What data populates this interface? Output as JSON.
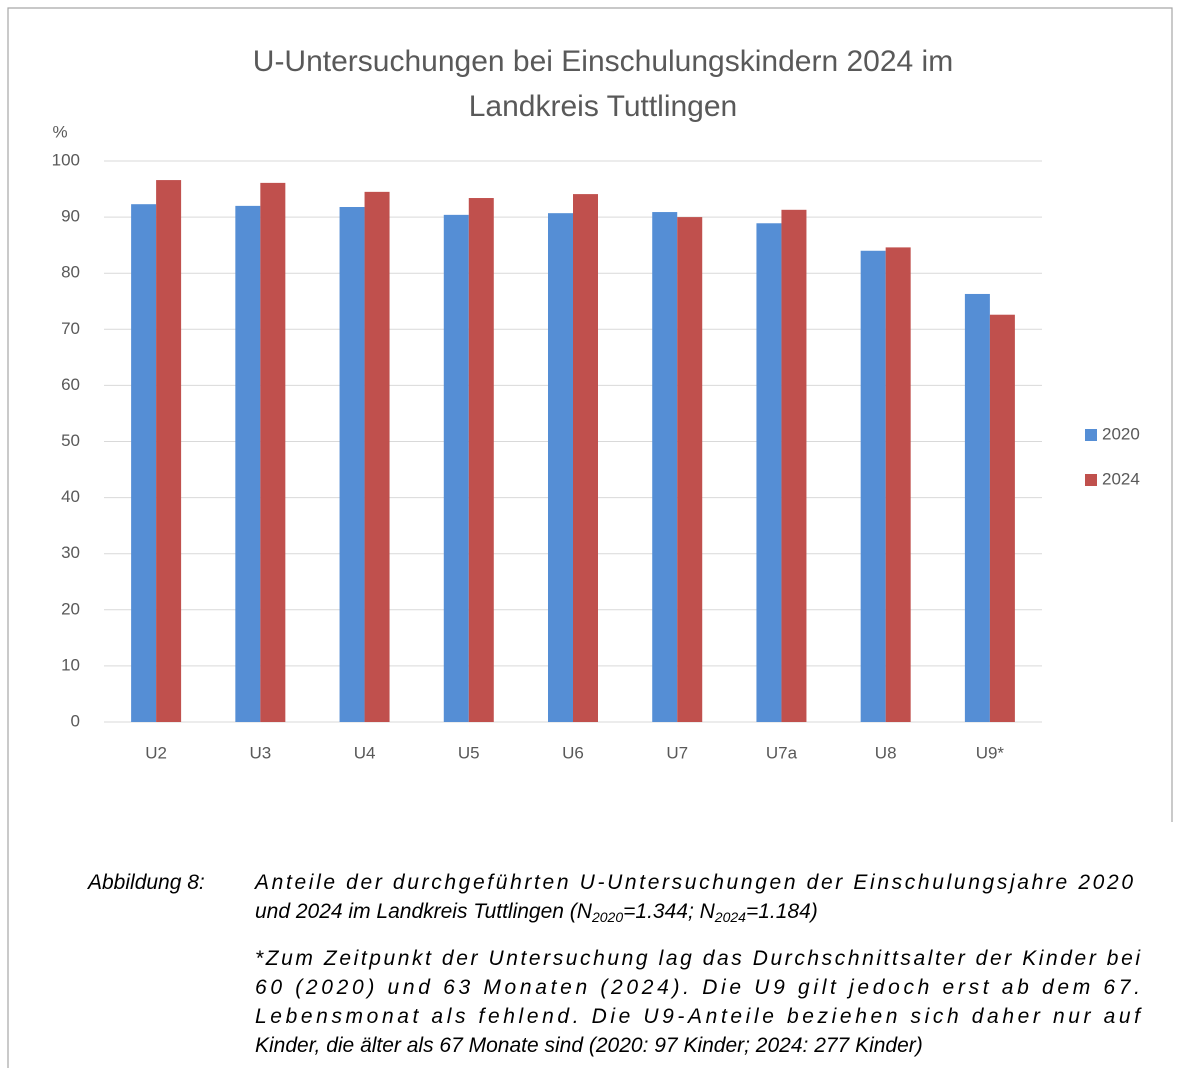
{
  "chart_data": {
    "type": "bar",
    "title": [
      "U-Untersuchungen bei Einschulungskindern 2024 im",
      "Landkreis Tuttlingen"
    ],
    "y_label": "%",
    "categories": [
      "U2",
      "U3",
      "U4",
      "U5",
      "U6",
      "U7",
      "U7a",
      "U8",
      "U9*"
    ],
    "series": [
      {
        "name": "2020",
        "color": "#558ed5",
        "values": [
          92.3,
          92.0,
          91.8,
          90.4,
          90.7,
          90.9,
          88.9,
          84.0,
          76.3
        ]
      },
      {
        "name": "2024",
        "color": "#c0504d",
        "values": [
          96.6,
          96.1,
          94.5,
          93.4,
          94.1,
          90.0,
          91.3,
          84.6,
          72.6
        ]
      }
    ],
    "ylim": [
      0,
      100
    ],
    "yticks": [
      0,
      10,
      20,
      30,
      40,
      50,
      60,
      70,
      80,
      90,
      100
    ],
    "grid": true,
    "legend": "right"
  },
  "caption": {
    "label": "Abbildung 8:",
    "line1": "Anteile der durchgeführten U-Untersuchungen der Einschulungsjahre 2020",
    "line2": [
      "und 2024 im Landkreis Tuttlingen (N",
      "2020",
      "=1.344; N",
      "2024",
      "=1.184)"
    ],
    "footnote": [
      "*Zum Zeitpunkt der Untersuchung lag das Durchschnittsalter der Kinder bei",
      "60 (2020) und 63 Monaten (2024). Die U9 gilt jedoch erst ab dem 67.",
      "Lebensmonat als fehlend. Die U9-Anteile beziehen sich daher nur auf",
      "Kinder, die älter als 67 Monate sind (2020: 97 Kinder; 2024: 277 Kinder)"
    ]
  }
}
